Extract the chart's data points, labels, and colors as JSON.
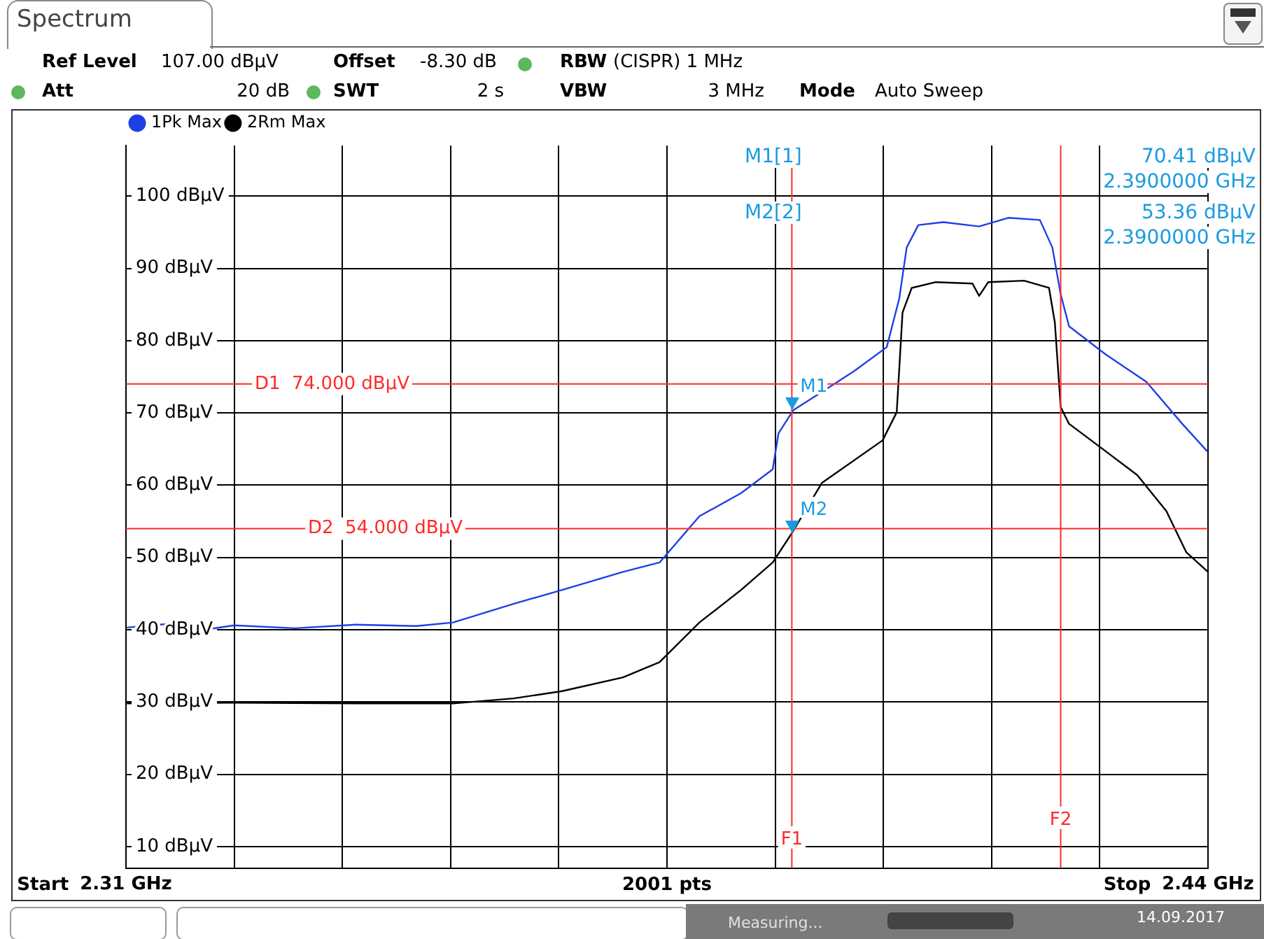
{
  "chart_data": {
    "type": "line",
    "legend": "top left",
    "grid": true,
    "marker": "none",
    "line_style": "solid",
    "xlabel": "2001 pts",
    "xlim": [
      2.31,
      2.44
    ],
    "xticks": [
      {
        "value": 2.31,
        "label": "2.31 GHz"
      },
      {
        "value": 2.323,
        "label": null
      },
      {
        "value": 2.336,
        "label": null
      },
      {
        "value": 2.349,
        "label": null
      },
      {
        "value": 2.362,
        "label": null
      },
      {
        "value": 2.375,
        "label": null
      },
      {
        "value": 2.388,
        "label": null
      },
      {
        "value": 2.401,
        "label": null
      },
      {
        "value": 2.414,
        "label": null
      },
      {
        "value": 2.427,
        "label": null
      },
      {
        "value": 2.44,
        "label": "2.44 GHz"
      }
    ],
    "ylim": [
      7,
      107
    ],
    "yticks": [
      {
        "value": 10,
        "label": "10 dBµV"
      },
      {
        "value": 20,
        "label": "20 dBµV"
      },
      {
        "value": 30,
        "label": "30 dBµV"
      },
      {
        "value": 40,
        "label": "40 dBµV"
      },
      {
        "value": 50,
        "label": "50 dBµV"
      },
      {
        "value": 60,
        "label": "60 dBµV"
      },
      {
        "value": 70,
        "label": "70 dBµV"
      },
      {
        "value": 80,
        "label": "80 dBµV"
      },
      {
        "value": 90,
        "label": "90 dBµV"
      },
      {
        "value": 100,
        "label": "100 dBµV"
      }
    ],
    "series": [
      {
        "name": "1Pk Max",
        "color": "#1f3fe6",
        "x": [
          2.3101,
          2.315,
          2.32,
          2.323,
          2.3303,
          2.3376,
          2.3449,
          2.3493,
          2.3566,
          2.3624,
          2.3697,
          2.3741,
          2.3789,
          2.3839,
          2.3877,
          2.3884,
          2.3902,
          2.3936,
          2.3975,
          2.4014,
          2.4029,
          2.4038,
          2.4052,
          2.4082,
          2.4125,
          2.416,
          2.4198,
          2.4213,
          2.4223,
          2.4233,
          2.4277,
          2.4326,
          2.4369,
          2.4399
        ],
        "values": [
          40.3,
          40.8,
          40.1,
          40.6,
          40.2,
          40.7,
          40.5,
          41,
          43.6,
          45.5,
          48,
          49.3,
          55.7,
          58.9,
          62.2,
          67.2,
          70.41,
          72.9,
          75.8,
          79.1,
          85.8,
          92.9,
          96,
          96.4,
          95.8,
          97,
          96.7,
          92.9,
          86.4,
          82,
          78.1,
          74.3,
          68.5,
          64.7
        ]
      },
      {
        "name": "2Rm Max",
        "color": "#000000",
        "x": [
          2.3101,
          2.323,
          2.3376,
          2.3493,
          2.3566,
          2.3624,
          2.3697,
          2.3741,
          2.3789,
          2.3839,
          2.3877,
          2.39,
          2.3936,
          2.4009,
          2.4026,
          2.4033,
          2.4044,
          2.4073,
          2.4117,
          2.4125,
          2.4136,
          2.4179,
          2.4209,
          2.4216,
          2.4223,
          2.4233,
          2.4277,
          2.4315,
          2.435,
          2.4374,
          2.44
        ],
        "values": [
          29.8,
          29.9,
          29.8,
          29.8,
          30.5,
          31.5,
          33.4,
          35.5,
          41,
          45.5,
          49.3,
          53.36,
          60.3,
          66.2,
          70.1,
          83.9,
          87.3,
          88.1,
          87.9,
          86.2,
          88.1,
          88.3,
          87.3,
          82.5,
          70.8,
          68.5,
          64.7,
          61.4,
          56.4,
          50.7,
          48
        ]
      }
    ],
    "ref_lines": [
      {
        "axis": "y",
        "value": 74,
        "label": "D1  74.000 dBµV",
        "color": "#ff2a2a"
      },
      {
        "axis": "y",
        "value": 54,
        "label": "D2  54.000 dBµV",
        "color": "#ff2a2a"
      },
      {
        "axis": "x",
        "value": 2.39,
        "label": "F1",
        "color": "#ff2a2a"
      },
      {
        "axis": "x",
        "value": 2.4223,
        "label": "F2",
        "color": "#ff2a2a"
      }
    ],
    "annotations": [
      "Spectrum",
      "Ref Level",
      "107.00 dBµV",
      "Offset",
      "-8.30 dB",
      "RBW",
      "(CISPR) 1 MHz",
      "Att",
      "20 dB",
      "SWT",
      "2 s",
      "VBW",
      "3 MHz",
      "Mode",
      "Auto Sweep",
      "M1[1]",
      "70.41 dBµV",
      "2.3900000 GHz",
      "M2[2]",
      "53.36 dBµV",
      "2.3900000 GHz",
      "Measuring...",
      "14.09.2017",
      {
        "text": "M1",
        "x": 2.39,
        "y": 70.41
      },
      {
        "text": "M2",
        "x": 2.39,
        "y": 53.36
      },
      "Start",
      "Stop"
    ]
  }
}
